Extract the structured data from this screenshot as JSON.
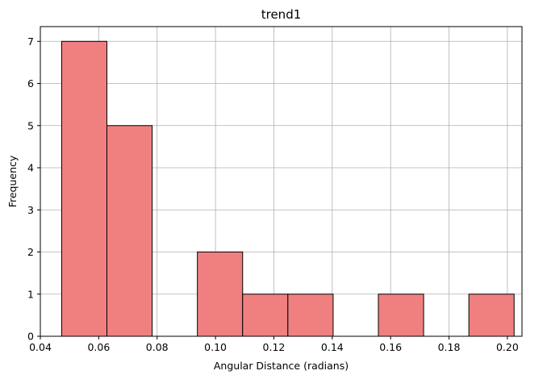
{
  "chart_data": {
    "type": "bar",
    "subtype": "histogram",
    "title": "trend1",
    "xlabel": "Angular Distance (radians)",
    "ylabel": "Frequency",
    "xlim": [
      0.04,
      0.205
    ],
    "ylim": [
      0,
      7.35
    ],
    "xticks": [
      0.04,
      0.06,
      0.08,
      0.1,
      0.12,
      0.14,
      0.16,
      0.18,
      0.2
    ],
    "xtick_labels": [
      "0.04",
      "0.06",
      "0.08",
      "0.10",
      "0.12",
      "0.14",
      "0.16",
      "0.18",
      "0.20"
    ],
    "yticks": [
      0,
      1,
      2,
      3,
      4,
      5,
      6,
      7
    ],
    "ytick_labels": [
      "0",
      "1",
      "2",
      "3",
      "4",
      "5",
      "6",
      "7"
    ],
    "grid": true,
    "bar_color": "#f08080",
    "edge_color": "#000000",
    "bins": [
      {
        "start": 0.0473,
        "end": 0.0628,
        "count": 7
      },
      {
        "start": 0.0628,
        "end": 0.0783,
        "count": 5
      },
      {
        "start": 0.0783,
        "end": 0.0938,
        "count": 0
      },
      {
        "start": 0.0938,
        "end": 0.1093,
        "count": 2
      },
      {
        "start": 0.1093,
        "end": 0.1248,
        "count": 1
      },
      {
        "start": 0.1248,
        "end": 0.1403,
        "count": 1
      },
      {
        "start": 0.1403,
        "end": 0.1558,
        "count": 0
      },
      {
        "start": 0.1558,
        "end": 0.1713,
        "count": 1
      },
      {
        "start": 0.1713,
        "end": 0.1868,
        "count": 0
      },
      {
        "start": 0.1868,
        "end": 0.2023,
        "count": 1
      }
    ]
  }
}
